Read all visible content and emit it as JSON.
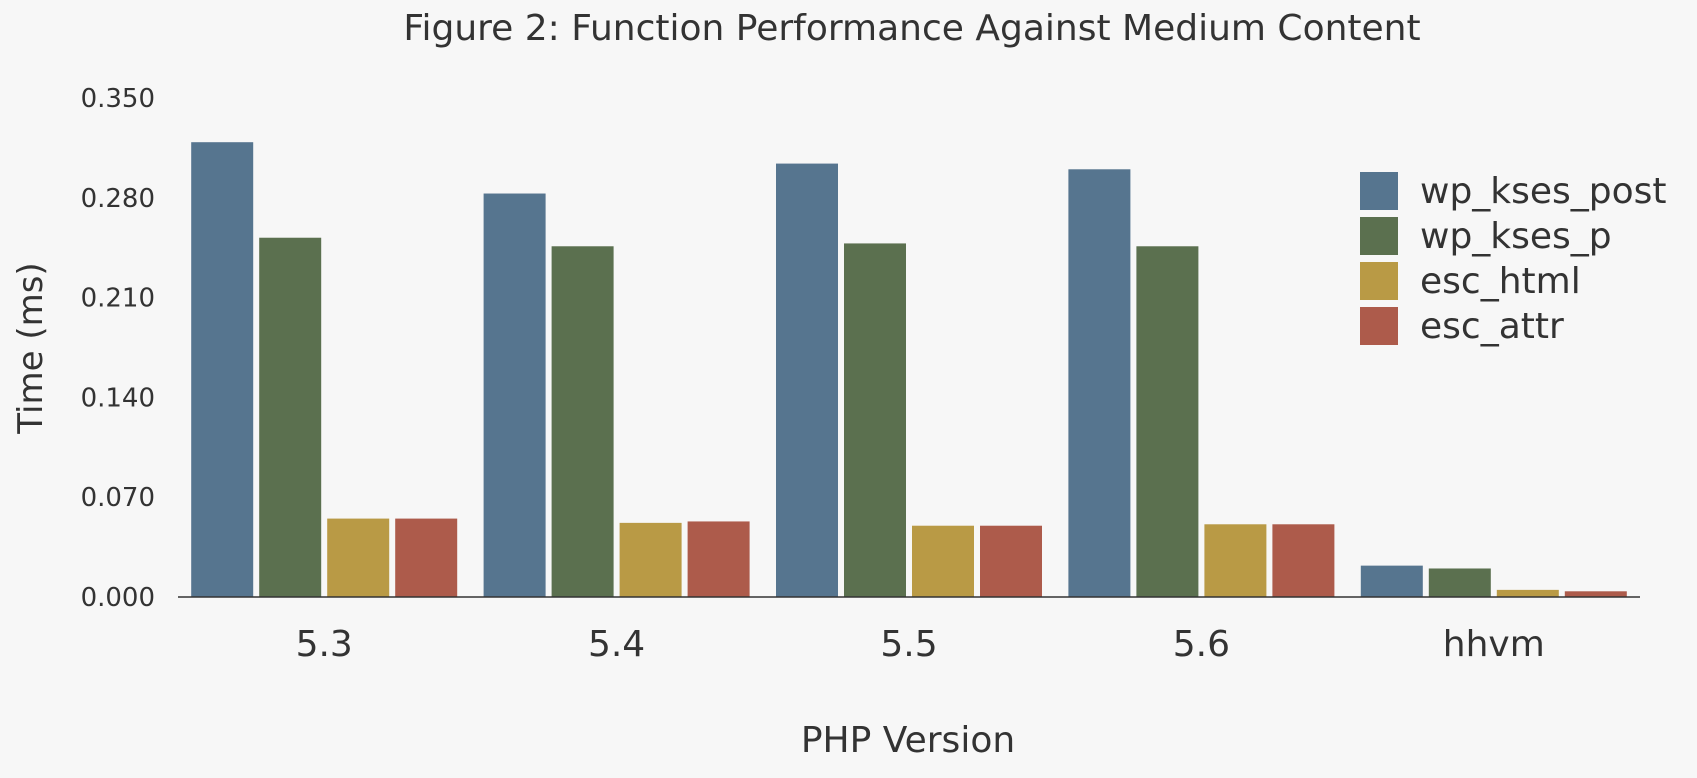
{
  "chart_data": {
    "type": "bar",
    "title": "Figure 2: Function Performance Against Medium Content",
    "xlabel": "PHP Version",
    "ylabel": "Time (ms)",
    "categories": [
      "5.3",
      "5.4",
      "5.5",
      "5.6",
      "hhvm"
    ],
    "ylim": [
      0,
      0.35
    ],
    "yticks": [
      "0.000",
      "0.070",
      "0.140",
      "0.210",
      "0.280",
      "0.350"
    ],
    "grid": false,
    "legend_position": "top-right",
    "series": [
      {
        "name": "wp_kses_post",
        "color": "#56758f",
        "values": [
          0.319,
          0.283,
          0.304,
          0.3,
          0.022
        ]
      },
      {
        "name": "wp_kses_p",
        "color": "#5b704f",
        "values": [
          0.252,
          0.246,
          0.248,
          0.246,
          0.02
        ]
      },
      {
        "name": "esc_html",
        "color": "#b99a45",
        "values": [
          0.055,
          0.052,
          0.05,
          0.051,
          0.005
        ]
      },
      {
        "name": "esc_attr",
        "color": "#ad5b4b",
        "values": [
          0.055,
          0.053,
          0.05,
          0.051,
          0.004
        ]
      }
    ]
  }
}
